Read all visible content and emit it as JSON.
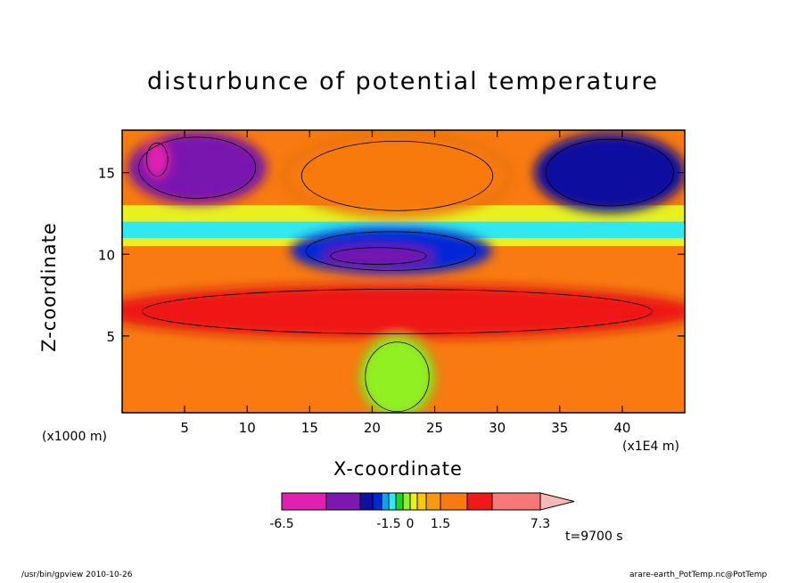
{
  "chart_data": {
    "type": "heatmap",
    "title": "disturbunce of potential temperature",
    "xlabel": "X-coordinate",
    "ylabel": "Z-coordinate",
    "x_unit_left": "(x1000 m)",
    "x_unit_right": "(x1E4 m)",
    "xlim": [
      0,
      45
    ],
    "ylim": [
      0.3,
      17.6
    ],
    "x_ticks": [
      5,
      10,
      15,
      20,
      25,
      30,
      35,
      40
    ],
    "y_ticks": [
      5,
      10,
      15
    ],
    "colorbar": {
      "levels": [
        -6.5,
        -5.5,
        -4.5,
        -3.5,
        -2.5,
        -1.5,
        -1.0,
        -0.5,
        0,
        0.5,
        1.0,
        1.5,
        2.5,
        3.5,
        5.5,
        7.3
      ],
      "colors": [
        "#e020b0",
        "#7a18b0",
        "#1010a0",
        "#0028d8",
        "#10a0f0",
        "#30e8f0",
        "#20d020",
        "#90f020",
        "#e8f020",
        "#f8c800",
        "#f89a10",
        "#f87a10",
        "#f01818",
        "#f87878",
        "#f8b8b8"
      ],
      "labels": [
        {
          "value": -6.5,
          "text": "-6.5"
        },
        {
          "value": -1.5,
          "text": "-1.5"
        },
        {
          "value": 0,
          "text": "0"
        },
        {
          "value": 1.5,
          "text": "1.5"
        },
        {
          "value": 7.3,
          "text": "7.3"
        }
      ],
      "extend": "max"
    },
    "features": [
      {
        "desc": "upper-left cold pool",
        "x": 6,
        "z": 15.3,
        "rx": 5.5,
        "rz": 2.2,
        "value": -5.0
      },
      {
        "desc": "upper-left core",
        "x": 2.8,
        "z": 15.8,
        "rx": 1.0,
        "rz": 1.2,
        "value": -6.5
      },
      {
        "desc": "upper-right cold pool",
        "x": 39,
        "z": 15.0,
        "rx": 6,
        "rz": 2.4,
        "value": -4.5
      },
      {
        "desc": "central cold band",
        "x": 21.5,
        "z": 10.2,
        "rx": 8,
        "rz": 1.4,
        "value": -3.0
      },
      {
        "desc": "central cold core",
        "x": 20.5,
        "z": 9.9,
        "rx": 4.5,
        "rz": 0.6,
        "value": -5.0
      },
      {
        "desc": "upper warm dome",
        "x": 22,
        "z": 14.8,
        "rx": 9,
        "rz": 2.5,
        "value": 2.0
      },
      {
        "desc": "lower warm band",
        "x": 22,
        "z": 6.5,
        "rx": 24,
        "rz": 1.6,
        "value": 2.5
      },
      {
        "desc": "convective column",
        "x": 22,
        "z": 2.5,
        "rx": 3,
        "rz": 2.5,
        "value": -0.5
      }
    ],
    "grid": false,
    "time_label": "t=9700 s"
  },
  "footer": {
    "left": "/usr/bin/gpview  2010-10-26",
    "right": "arare-earth_PotTemp.nc@PotTemp"
  }
}
